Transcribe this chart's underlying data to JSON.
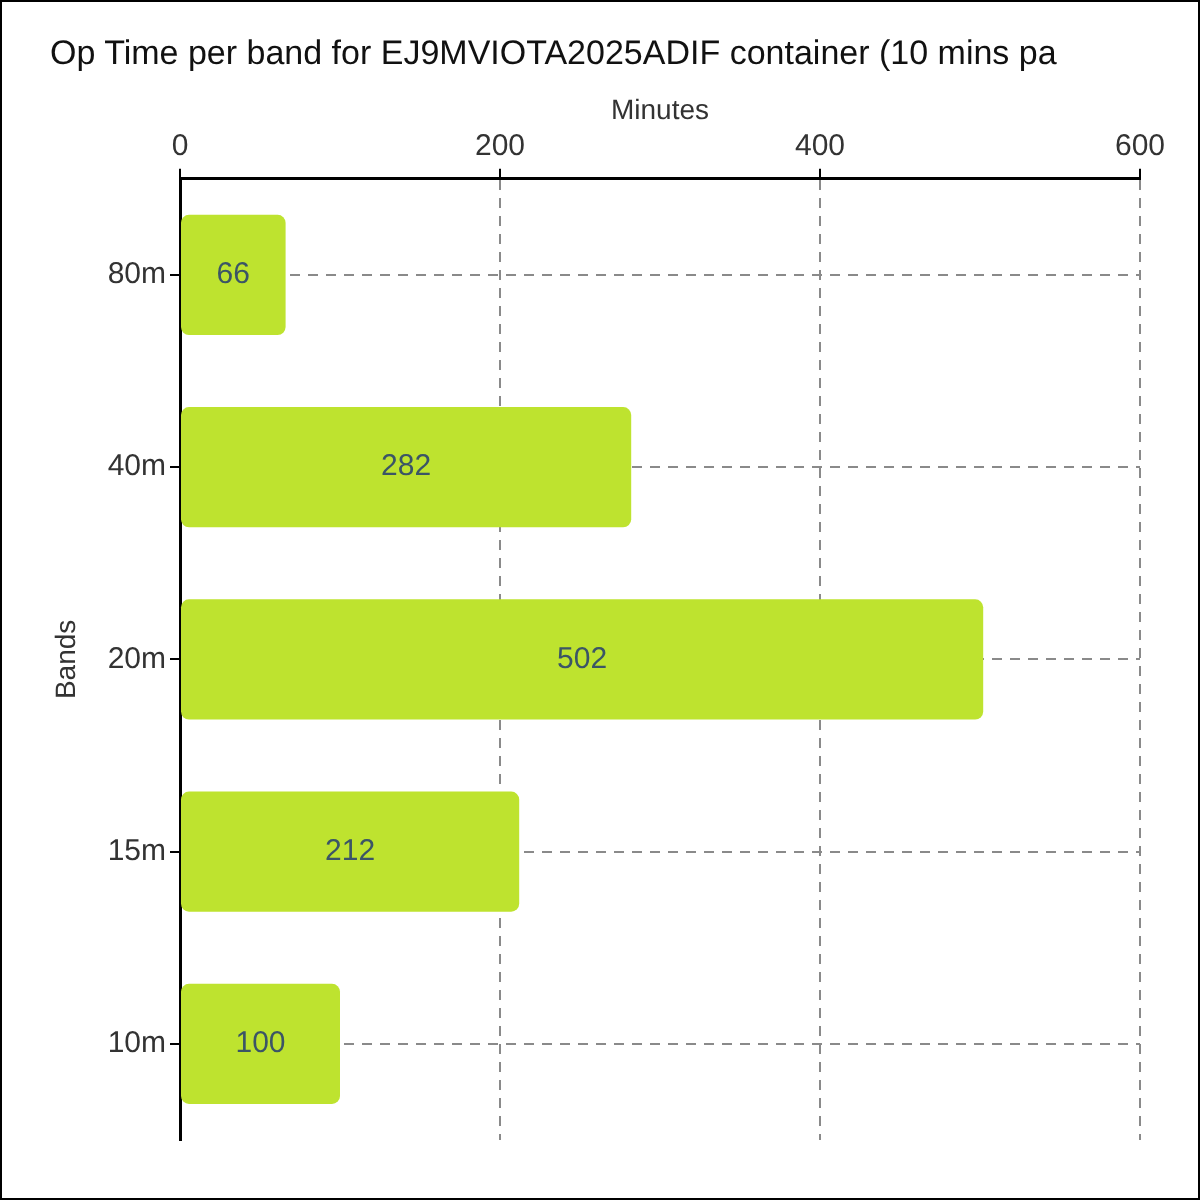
{
  "chart_data": {
    "type": "bar",
    "orientation": "horizontal",
    "title": "Op Time per band for EJ9MVIOTA2025ADIF container (10 mins pa",
    "xlabel": "Minutes",
    "ylabel": "Bands",
    "categories": [
      "80m",
      "40m",
      "20m",
      "15m",
      "10m"
    ],
    "values": [
      66,
      282,
      502,
      212,
      100
    ],
    "color": "#bee32f",
    "xlim": [
      0,
      600
    ],
    "xticks": [
      0,
      200,
      400,
      600
    ],
    "grid": true,
    "data_labels": true,
    "legend": false
  }
}
